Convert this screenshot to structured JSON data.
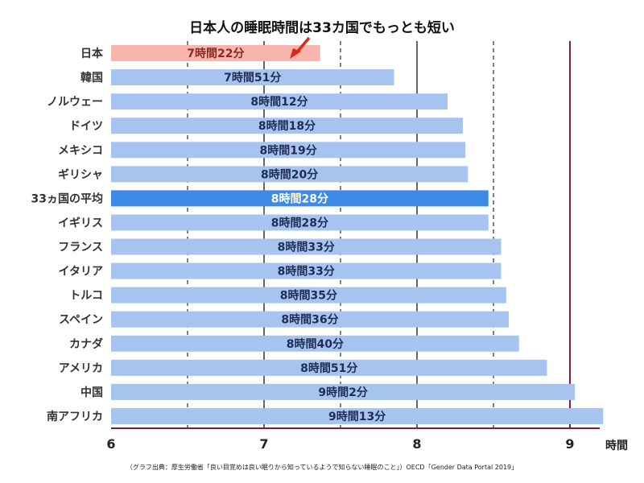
{
  "chart_data": {
    "type": "bar",
    "orientation": "horizontal",
    "title": "日本人の睡眠時間は33カ国でもっとも短い",
    "xlabel": "時間",
    "xlim": [
      6,
      9.2
    ],
    "xticks": [
      6,
      7,
      8,
      9
    ],
    "grid": true,
    "source": "（グラフ出典：厚生労働省「良い目覚めは良い眠りから知っているようで知らない睡眠のこと」）OECD「Gender Data Portal 2019」",
    "categories": [
      "日本",
      "韓国",
      "ノルウェー",
      "ドイツ",
      "メキシコ",
      "ギリシャ",
      "33ヵ国の平均",
      "イギリス",
      "フランス",
      "イタリア",
      "トルコ",
      "スペイン",
      "カナダ",
      "アメリカ",
      "中国",
      "南アフリカ"
    ],
    "values": [
      7.367,
      7.85,
      8.2,
      8.3,
      8.317,
      8.333,
      8.467,
      8.467,
      8.55,
      8.55,
      8.583,
      8.6,
      8.667,
      8.85,
      9.033,
      9.217
    ],
    "value_labels": [
      "7時間22分",
      "7時間51分",
      "8時間12分",
      "8時間18分",
      "8時間19分",
      "8時間20分",
      "8時間28分",
      "8時間28分",
      "8時間33分",
      "8時間33分",
      "8時間35分",
      "8時間36分",
      "8時間40分",
      "8時間51分",
      "9時間2分",
      "9時間13分"
    ],
    "highlight": {
      "category": "日本",
      "color": "#f7b5ae",
      "label_color": "#8b2a1e",
      "arrow_color": "#e02418"
    },
    "average": {
      "category": "33ヵ国の平均",
      "color": "#3d8ae6",
      "label_color": "#ffffff"
    },
    "bar_color": "#a7c4f0",
    "label_color": "#1f2d55"
  }
}
